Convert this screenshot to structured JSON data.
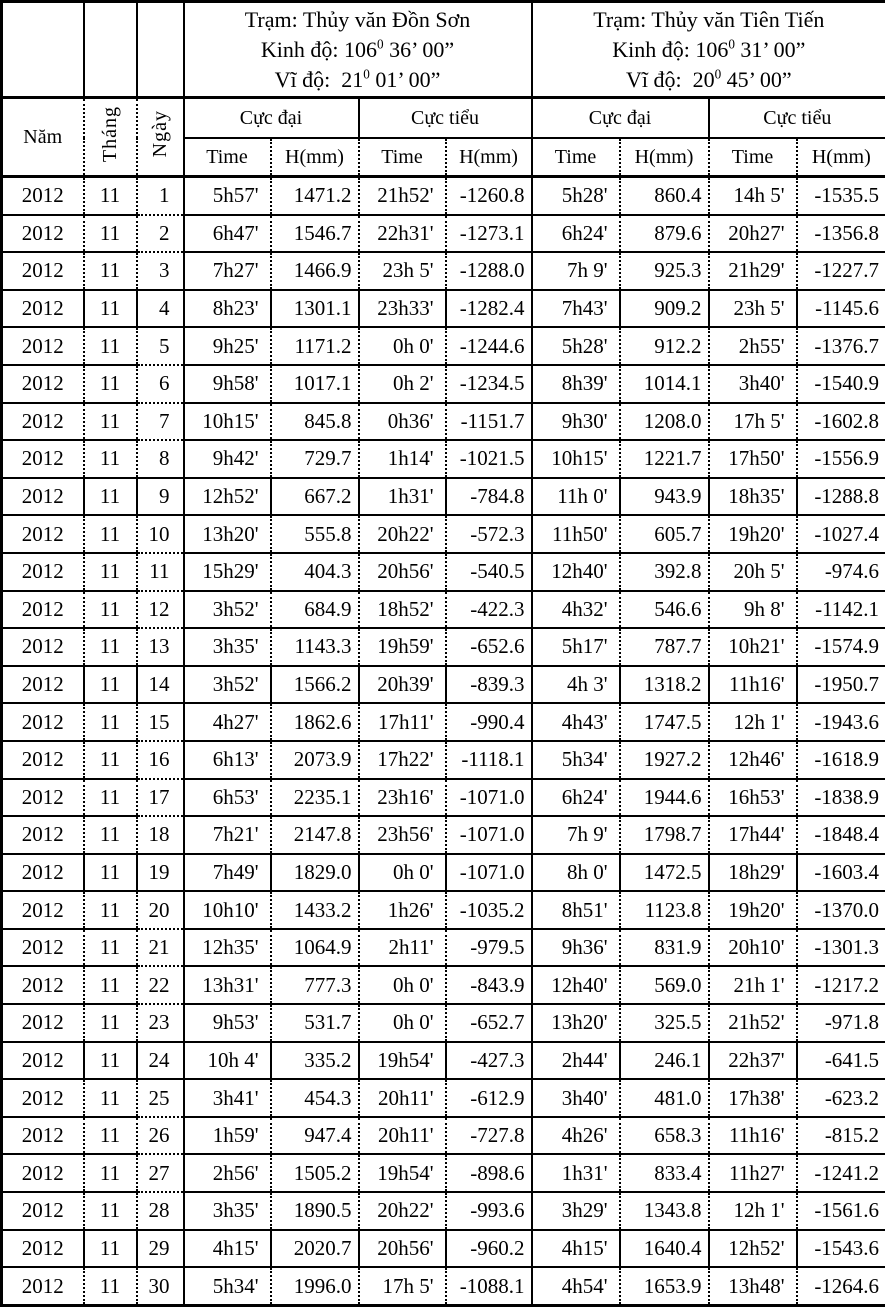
{
  "colors": {
    "background": "#ffffff",
    "text": "#000000",
    "border": "#000000"
  },
  "header": {
    "col_nam": "Năm",
    "col_thang": "Tháng",
    "col_ngay": "Ngày",
    "group_max": "Cực đại",
    "group_min": "Cực tiểu",
    "sub_time": "Time",
    "sub_h": "H(mm)"
  },
  "stations": [
    {
      "name": "Trạm: Thủy văn Đồn Sơn",
      "lon_label": "Kinh độ:",
      "lon_deg": "106",
      "lon_sup": "0",
      "lon_rest": "36’ 00”",
      "lat_label": "Vĩ độ:",
      "lat_deg": "21",
      "lat_sup": "0",
      "lat_rest": "01’ 00”"
    },
    {
      "name": "Trạm: Thủy văn Tiên Tiến",
      "lon_label": "Kinh độ:",
      "lon_deg": "106",
      "lon_sup": "0",
      "lon_rest": "31’ 00”",
      "lat_label": "Vĩ độ:",
      "lat_deg": "20",
      "lat_sup": "0",
      "lat_rest": "45’ 00”"
    }
  ],
  "rows": [
    {
      "year": "2012",
      "month": "11",
      "day": "1",
      "cells": [
        "5h57'",
        "1471.2",
        "21h52'",
        "-1260.8",
        "5h28'",
        "860.4",
        "14h 5'",
        "-1535.5"
      ]
    },
    {
      "year": "2012",
      "month": "11",
      "day": "2",
      "cells": [
        "6h47'",
        "1546.7",
        "22h31'",
        "-1273.1",
        "6h24'",
        "879.6",
        "20h27'",
        "-1356.8"
      ]
    },
    {
      "year": "2012",
      "month": "11",
      "day": "3",
      "cells": [
        "7h27'",
        "1466.9",
        "23h 5'",
        "-1288.0",
        "7h 9'",
        "925.3",
        "21h29'",
        "-1227.7"
      ]
    },
    {
      "year": "2012",
      "month": "11",
      "day": "4",
      "cells": [
        "8h23'",
        "1301.1",
        "23h33'",
        "-1282.4",
        "7h43'",
        "909.2",
        "23h 5'",
        "-1145.6"
      ]
    },
    {
      "year": "2012",
      "month": "11",
      "day": "5",
      "cells": [
        "9h25'",
        "1171.2",
        "0h 0'",
        "-1244.6",
        "5h28'",
        "912.2",
        "2h55'",
        "-1376.7"
      ]
    },
    {
      "year": "2012",
      "month": "11",
      "day": "6",
      "cells": [
        "9h58'",
        "1017.1",
        "0h 2'",
        "-1234.5",
        "8h39'",
        "1014.1",
        "3h40'",
        "-1540.9"
      ]
    },
    {
      "year": "2012",
      "month": "11",
      "day": "7",
      "cells": [
        "10h15'",
        "845.8",
        "0h36'",
        "-1151.7",
        "9h30'",
        "1208.0",
        "17h 5'",
        "-1602.8"
      ]
    },
    {
      "year": "2012",
      "month": "11",
      "day": "8",
      "cells": [
        "9h42'",
        "729.7",
        "1h14'",
        "-1021.5",
        "10h15'",
        "1221.7",
        "17h50'",
        "-1556.9"
      ]
    },
    {
      "year": "2012",
      "month": "11",
      "day": "9",
      "cells": [
        "12h52'",
        "667.2",
        "1h31'",
        "-784.8",
        "11h 0'",
        "943.9",
        "18h35'",
        "-1288.8"
      ]
    },
    {
      "year": "2012",
      "month": "11",
      "day": "10",
      "cells": [
        "13h20'",
        "555.8",
        "20h22'",
        "-572.3",
        "11h50'",
        "605.7",
        "19h20'",
        "-1027.4"
      ]
    },
    {
      "year": "2012",
      "month": "11",
      "day": "11",
      "cells": [
        "15h29'",
        "404.3",
        "20h56'",
        "-540.5",
        "12h40'",
        "392.8",
        "20h 5'",
        "-974.6"
      ]
    },
    {
      "year": "2012",
      "month": "11",
      "day": "12",
      "cells": [
        "3h52'",
        "684.9",
        "18h52'",
        "-422.3",
        "4h32'",
        "546.6",
        "9h 8'",
        "-1142.1"
      ]
    },
    {
      "year": "2012",
      "month": "11",
      "day": "13",
      "cells": [
        "3h35'",
        "1143.3",
        "19h59'",
        "-652.6",
        "5h17'",
        "787.7",
        "10h21'",
        "-1574.9"
      ]
    },
    {
      "year": "2012",
      "month": "11",
      "day": "14",
      "cells": [
        "3h52'",
        "1566.2",
        "20h39'",
        "-839.3",
        "4h 3'",
        "1318.2",
        "11h16'",
        "-1950.7"
      ]
    },
    {
      "year": "2012",
      "month": "11",
      "day": "15",
      "cells": [
        "4h27'",
        "1862.6",
        "17h11'",
        "-990.4",
        "4h43'",
        "1747.5",
        "12h 1'",
        "-1943.6"
      ]
    },
    {
      "year": "2012",
      "month": "11",
      "day": "16",
      "cells": [
        "6h13'",
        "2073.9",
        "17h22'",
        "-1118.1",
        "5h34'",
        "1927.2",
        "12h46'",
        "-1618.9"
      ]
    },
    {
      "year": "2012",
      "month": "11",
      "day": "17",
      "cells": [
        "6h53'",
        "2235.1",
        "23h16'",
        "-1071.0",
        "6h24'",
        "1944.6",
        "16h53'",
        "-1838.9"
      ]
    },
    {
      "year": "2012",
      "month": "11",
      "day": "18",
      "cells": [
        "7h21'",
        "2147.8",
        "23h56'",
        "-1071.0",
        "7h 9'",
        "1798.7",
        "17h44'",
        "-1848.4"
      ]
    },
    {
      "year": "2012",
      "month": "11",
      "day": "19",
      "cells": [
        "7h49'",
        "1829.0",
        "0h 0'",
        "-1071.0",
        "8h 0'",
        "1472.5",
        "18h29'",
        "-1603.4"
      ]
    },
    {
      "year": "2012",
      "month": "11",
      "day": "20",
      "cells": [
        "10h10'",
        "1433.2",
        "1h26'",
        "-1035.2",
        "8h51'",
        "1123.8",
        "19h20'",
        "-1370.0"
      ]
    },
    {
      "year": "2012",
      "month": "11",
      "day": "21",
      "cells": [
        "12h35'",
        "1064.9",
        "2h11'",
        "-979.5",
        "9h36'",
        "831.9",
        "20h10'",
        "-1301.3"
      ]
    },
    {
      "year": "2012",
      "month": "11",
      "day": "22",
      "cells": [
        "13h31'",
        "777.3",
        "0h 0'",
        "-843.9",
        "12h40'",
        "569.0",
        "21h 1'",
        "-1217.2"
      ]
    },
    {
      "year": "2012",
      "month": "11",
      "day": "23",
      "cells": [
        "9h53'",
        "531.7",
        "0h 0'",
        "-652.7",
        "13h20'",
        "325.5",
        "21h52'",
        "-971.8"
      ]
    },
    {
      "year": "2012",
      "month": "11",
      "day": "24",
      "cells": [
        "10h 4'",
        "335.2",
        "19h54'",
        "-427.3",
        "2h44'",
        "246.1",
        "22h37'",
        "-641.5"
      ]
    },
    {
      "year": "2012",
      "month": "11",
      "day": "25",
      "cells": [
        "3h41'",
        "454.3",
        "20h11'",
        "-612.9",
        "3h40'",
        "481.0",
        "17h38'",
        "-623.2"
      ]
    },
    {
      "year": "2012",
      "month": "11",
      "day": "26",
      "cells": [
        "1h59'",
        "947.4",
        "20h11'",
        "-727.8",
        "4h26'",
        "658.3",
        "11h16'",
        "-815.2"
      ]
    },
    {
      "year": "2012",
      "month": "11",
      "day": "27",
      "cells": [
        "2h56'",
        "1505.2",
        "19h54'",
        "-898.6",
        "1h31'",
        "833.4",
        "11h27'",
        "-1241.2"
      ]
    },
    {
      "year": "2012",
      "month": "11",
      "day": "28",
      "cells": [
        "3h35'",
        "1890.5",
        "20h22'",
        "-993.6",
        "3h29'",
        "1343.8",
        "12h 1'",
        "-1561.6"
      ]
    },
    {
      "year": "2012",
      "month": "11",
      "day": "29",
      "cells": [
        "4h15'",
        "2020.7",
        "20h56'",
        "-960.2",
        "4h15'",
        "1640.4",
        "12h52'",
        "-1543.6"
      ]
    },
    {
      "year": "2012",
      "month": "11",
      "day": "30",
      "cells": [
        "5h34'",
        "1996.0",
        "17h 5'",
        "-1088.1",
        "4h54'",
        "1653.9",
        "13h48'",
        "-1264.6"
      ]
    }
  ]
}
